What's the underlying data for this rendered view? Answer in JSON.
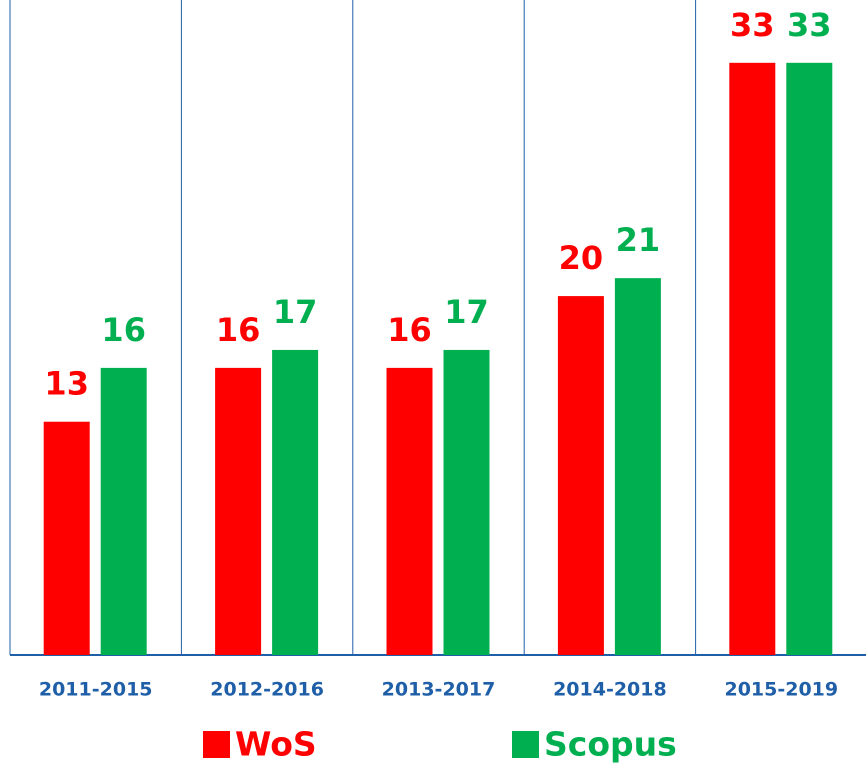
{
  "chart_data": {
    "type": "bar",
    "categories": [
      "2011-2015",
      "2012-2016",
      "2013-2017",
      "2014-2018",
      "2015-2019"
    ],
    "series": [
      {
        "name": "WoS",
        "color": "#ff0000",
        "values": [
          13,
          16,
          16,
          20,
          33
        ]
      },
      {
        "name": "Scopus",
        "color": "#00b050",
        "values": [
          16,
          17,
          17,
          21,
          33
        ]
      }
    ],
    "ylim": [
      0,
      36.5
    ]
  }
}
